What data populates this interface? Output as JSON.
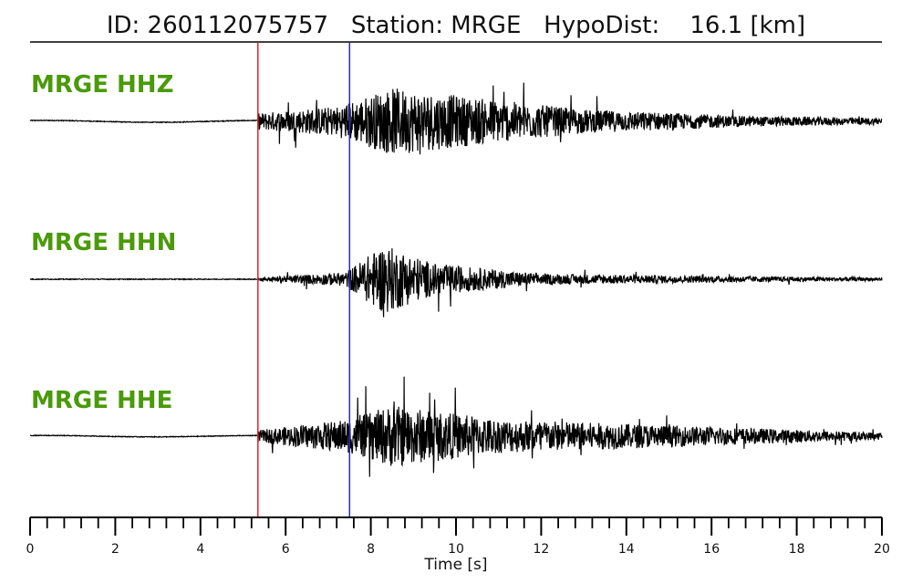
{
  "chart_data": {
    "type": "line",
    "title": "ID: 260112075757   Station: MRGE   HypoDist:    16.1 [km]",
    "title_parts": {
      "id": "ID: 260112075757",
      "station": "Station: MRGE",
      "hypodist": "HypoDist:    16.1 [km]"
    },
    "xlabel": "Time [s]",
    "xlim": [
      0,
      20
    ],
    "x_major_ticks": [
      0,
      2,
      4,
      6,
      8,
      10,
      12,
      14,
      16,
      18,
      20
    ],
    "x_minor_step": 0.4,
    "grid": false,
    "picks": [
      {
        "phase": "P",
        "time": 5.35,
        "color": "#e8211f"
      },
      {
        "phase": "S",
        "time": 7.5,
        "color": "#2a2ab8"
      }
    ],
    "label_color": "#4a9a0a",
    "trace_color": "#000000",
    "series": [
      {
        "name": "MRGE HHZ",
        "envelope_peaks": [
          [
            5.4,
            0.25
          ],
          [
            7.2,
            0.45
          ],
          [
            8.5,
            1.0
          ],
          [
            10.5,
            0.7
          ],
          [
            13.0,
            0.35
          ],
          [
            17.0,
            0.15
          ],
          [
            20.0,
            0.1
          ]
        ],
        "pre_event_wave_amp": 0.1
      },
      {
        "name": "MRGE HHN",
        "envelope_peaks": [
          [
            5.4,
            0.05
          ],
          [
            7.4,
            0.2
          ],
          [
            8.3,
            1.0
          ],
          [
            9.5,
            0.45
          ],
          [
            12.0,
            0.15
          ],
          [
            17.0,
            0.08
          ],
          [
            20.0,
            0.05
          ]
        ],
        "pre_event_wave_amp": 0.0
      },
      {
        "name": "MRGE HHE",
        "envelope_peaks": [
          [
            5.4,
            0.2
          ],
          [
            7.5,
            0.55
          ],
          [
            8.5,
            1.0
          ],
          [
            11.0,
            0.55
          ],
          [
            14.0,
            0.4
          ],
          [
            17.0,
            0.25
          ],
          [
            20.0,
            0.12
          ]
        ],
        "pre_event_wave_amp": 0.08
      }
    ]
  }
}
